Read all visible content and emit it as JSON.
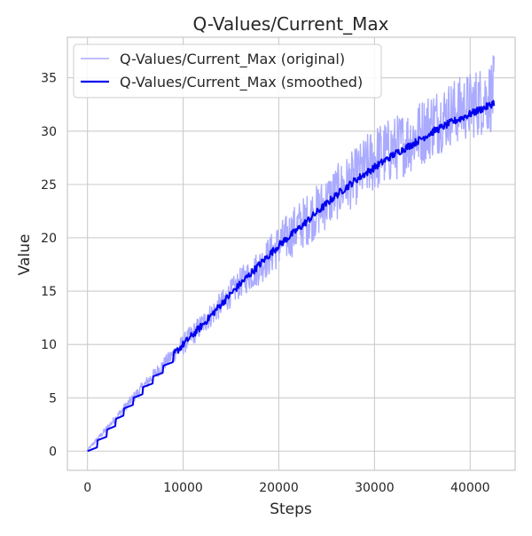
{
  "chart_data": {
    "type": "line",
    "title": "Q-Values/Current_Max",
    "xlabel": "Steps",
    "ylabel": "Value",
    "xlim": [
      -2100,
      44700
    ],
    "ylim": [
      -1.8,
      38.8
    ],
    "xticks": [
      0,
      10000,
      20000,
      30000,
      40000
    ],
    "xtick_labels": [
      "0",
      "10000",
      "20000",
      "30000",
      "40000"
    ],
    "yticks": [
      0,
      5,
      10,
      15,
      20,
      25,
      30,
      35
    ],
    "ytick_labels": [
      "0",
      "5",
      "10",
      "15",
      "20",
      "25",
      "30",
      "35"
    ],
    "grid": true,
    "legend_position": "top-left",
    "x_max": 42500,
    "series": [
      {
        "name": "Q-Values/Current_Max (original)",
        "color": "#aaaaff",
        "style": "band",
        "x": [
          0,
          2000,
          4000,
          6000,
          8000,
          10000,
          12000,
          14000,
          16000,
          18000,
          20000,
          22000,
          24000,
          26000,
          28000,
          30000,
          32000,
          34000,
          36000,
          38000,
          40000,
          42000,
          42500
        ],
        "lower": [
          0,
          1.8,
          3.8,
          5.6,
          7.6,
          9.0,
          10.8,
          12.6,
          14.4,
          15.6,
          17.2,
          18.6,
          20.0,
          21.6,
          23.0,
          24.2,
          25.2,
          26.2,
          27.4,
          28.6,
          29.2,
          29.8,
          30.0
        ],
        "upper": [
          0.2,
          2.4,
          4.6,
          6.8,
          8.8,
          11.0,
          13.0,
          15.0,
          17.2,
          19.0,
          21.4,
          23.4,
          25.0,
          26.8,
          28.4,
          30.6,
          31.4,
          32.4,
          34.0,
          34.8,
          35.6,
          36.6,
          37.2
        ]
      },
      {
        "name": "Q-Values/Current_Max (smoothed)",
        "color": "#0000ee",
        "style": "line",
        "x": [
          0,
          2000,
          4000,
          6000,
          8000,
          10000,
          12000,
          14000,
          16000,
          18000,
          20000,
          22000,
          24000,
          26000,
          28000,
          30000,
          32000,
          34000,
          36000,
          38000,
          40000,
          42000,
          42500
        ],
        "values": [
          0,
          2.0,
          4.2,
          6.2,
          8.1,
          10.0,
          11.8,
          13.8,
          15.7,
          17.5,
          19.3,
          20.8,
          22.4,
          24.0,
          25.4,
          26.6,
          27.8,
          28.8,
          29.9,
          30.8,
          31.6,
          32.4,
          32.7
        ]
      }
    ]
  }
}
